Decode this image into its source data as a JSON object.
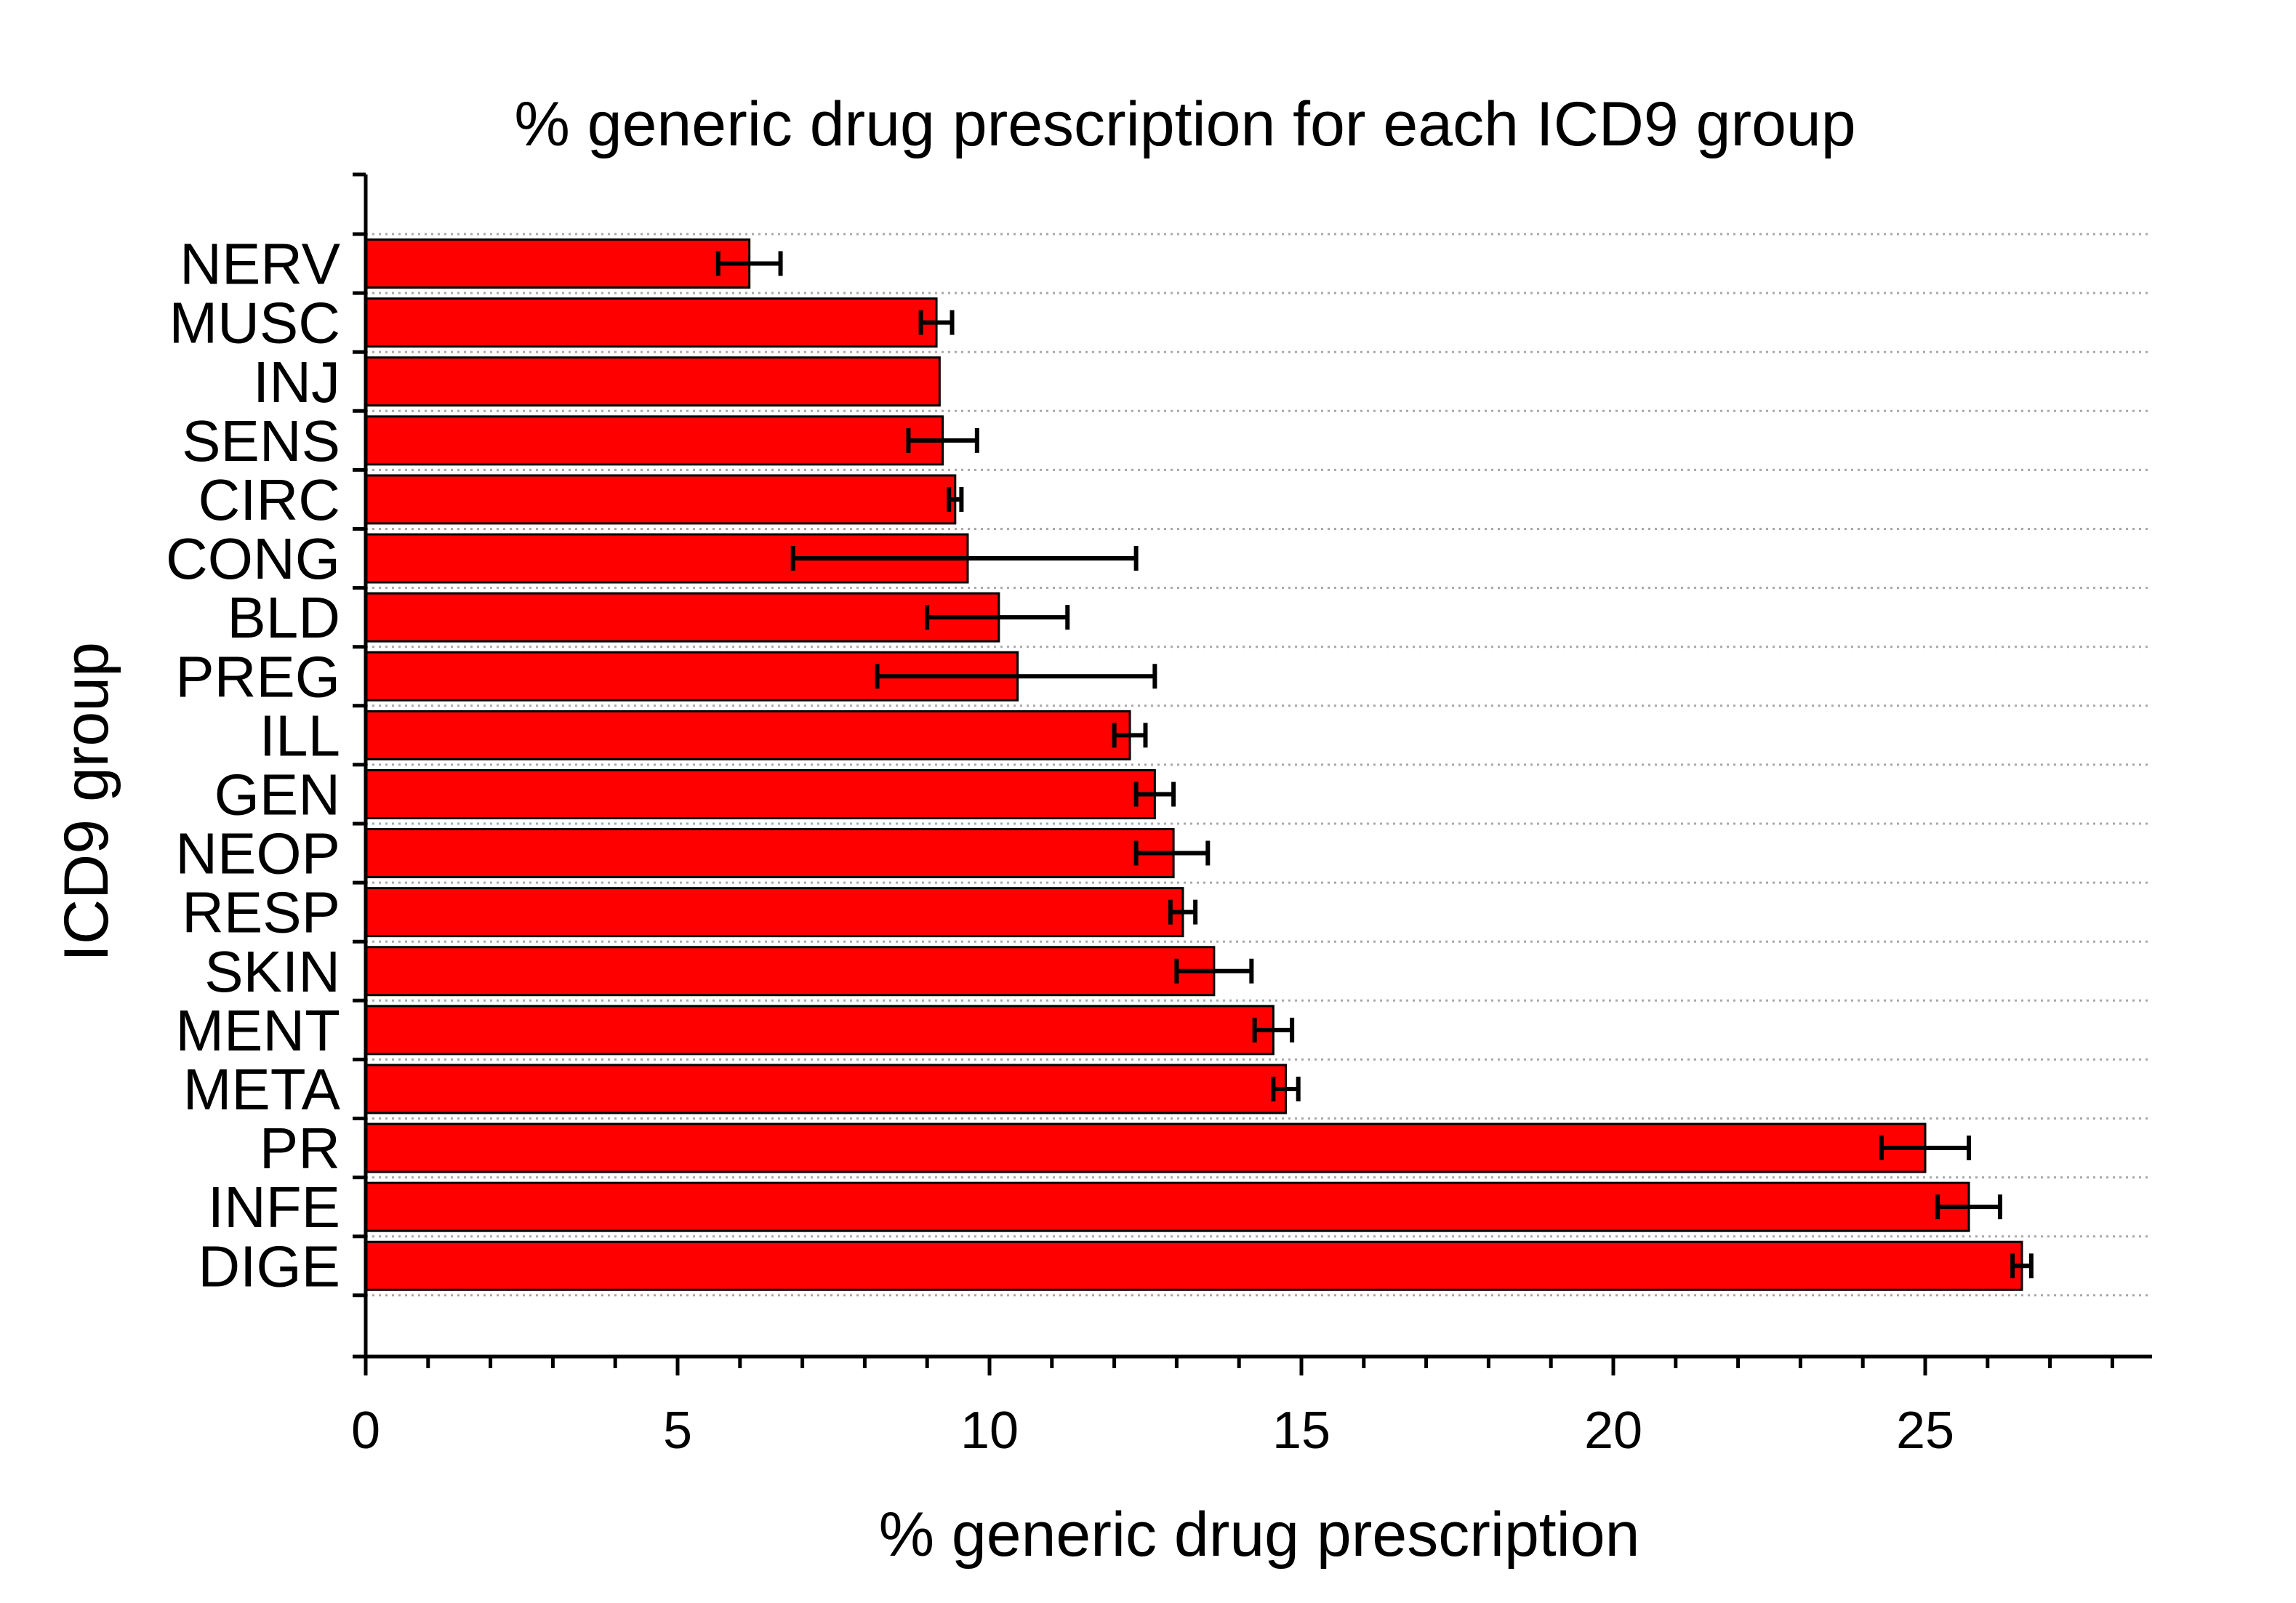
{
  "chart_data": {
    "type": "bar",
    "orientation": "horizontal",
    "title": "% generic drug prescription for each ICD9 group",
    "xlabel": "% generic drug prescription",
    "ylabel": "ICD9 group",
    "xlim": [
      0,
      28.5
    ],
    "xticks": [
      "0",
      "5",
      "10",
      "15",
      "20",
      "25"
    ],
    "grid": "horizontal dotted",
    "bar_color": "#ff0000",
    "categories": [
      "NERV",
      "MUSC",
      "INJ",
      "SENS",
      "CIRC",
      "CONG",
      "BLD",
      "PREG",
      "ILL",
      "GEN",
      "NEOP",
      "RESP",
      "SKIN",
      "MENT",
      "META",
      "PR",
      "INFE",
      "DIGE"
    ],
    "values": [
      6.15,
      9.15,
      9.2,
      9.25,
      9.45,
      9.65,
      10.15,
      10.45,
      12.25,
      12.65,
      12.95,
      13.1,
      13.6,
      14.55,
      14.75,
      25.0,
      25.7,
      26.55
    ],
    "error_low": [
      5.65,
      8.9,
      null,
      8.7,
      9.35,
      6.85,
      9.0,
      8.2,
      12.0,
      12.35,
      12.35,
      12.9,
      13.0,
      14.25,
      14.55,
      24.3,
      25.2,
      26.4
    ],
    "error_high": [
      6.65,
      9.4,
      null,
      9.8,
      9.55,
      12.35,
      11.25,
      12.65,
      12.5,
      12.95,
      13.5,
      13.3,
      14.2,
      14.85,
      14.95,
      25.7,
      26.2,
      26.7
    ]
  }
}
